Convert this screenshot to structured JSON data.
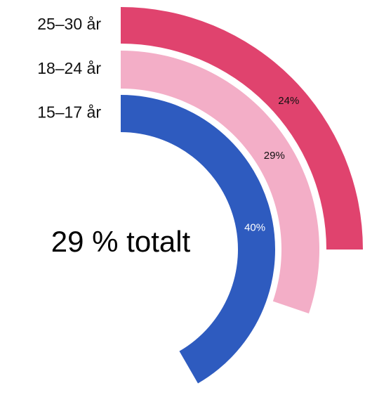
{
  "chart_data": {
    "type": "radial-bar",
    "categories": [
      "25–30 år",
      "18–24 år",
      "15–17 år"
    ],
    "values": [
      24,
      29,
      40
    ],
    "value_labels": [
      "24%",
      "29%",
      "40%"
    ],
    "colors": [
      "#e0436e",
      "#f3aec7",
      "#2e5bbf"
    ],
    "ylim": [
      0,
      96
    ],
    "annotation": "29 % totalt"
  }
}
